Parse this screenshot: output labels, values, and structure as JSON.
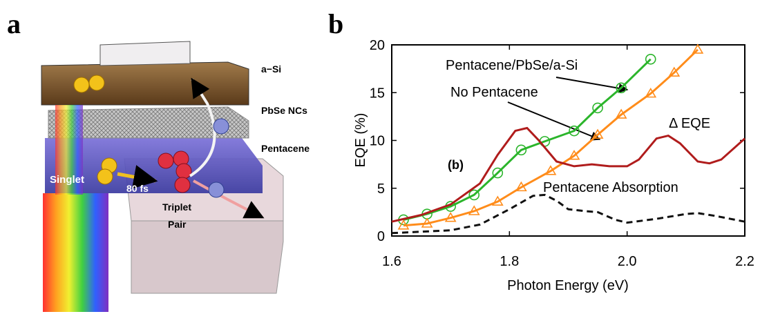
{
  "panel_a": {
    "panel_label": "a",
    "layer_labels": [
      "a−Si",
      "PbSe NCs",
      "Pentacene"
    ],
    "process_labels": [
      "Singlet",
      "80 fs",
      "Triplet",
      "Pair"
    ]
  },
  "chart_data": {
    "type": "line",
    "panel_label": "b",
    "inset_label": "(b)",
    "xlabel": "Photon Energy (eV)",
    "ylabel": "EQE (%)",
    "xlim": [
      1.6,
      2.2
    ],
    "ylim": [
      0,
      20
    ],
    "xticks": [
      1.6,
      1.8,
      {
        "value": 2,
        "label": "2.0"
      },
      2.2
    ],
    "yticks": [
      0,
      5,
      10,
      15,
      20
    ],
    "series": [
      {
        "name": "Pentacene/PbSe/a-Si",
        "color": "#2bb52b",
        "marker": "circle",
        "linestyle": "solid",
        "x": [
          1.62,
          1.66,
          1.7,
          1.74,
          1.78,
          1.82,
          1.86,
          1.91,
          1.95,
          1.99,
          2.04
        ],
        "values": [
          1.7,
          2.3,
          3.1,
          4.3,
          6.6,
          9.0,
          9.9,
          11.0,
          13.4,
          15.5,
          18.5
        ]
      },
      {
        "name": "No Pentacene",
        "color": "#ff8c1a",
        "marker": "triangle",
        "linestyle": "solid",
        "x": [
          1.62,
          1.66,
          1.7,
          1.74,
          1.78,
          1.82,
          1.87,
          1.91,
          1.95,
          1.99,
          2.04,
          2.08,
          2.12
        ],
        "values": [
          1.1,
          1.3,
          1.9,
          2.6,
          3.6,
          5.1,
          6.8,
          8.4,
          10.6,
          12.7,
          14.9,
          17.1,
          19.5
        ]
      },
      {
        "name": "Δ EQE",
        "color": "#b01c1c",
        "marker": null,
        "linestyle": "solid",
        "x": [
          1.6,
          1.65,
          1.7,
          1.75,
          1.78,
          1.81,
          1.83,
          1.85,
          1.88,
          1.91,
          1.94,
          1.97,
          2.0,
          2.02,
          2.05,
          2.07,
          2.09,
          2.12,
          2.14,
          2.16,
          2.2
        ],
        "values": [
          1.5,
          2.2,
          3.3,
          5.5,
          8.5,
          11.0,
          11.3,
          10.0,
          7.8,
          7.3,
          7.5,
          7.3,
          7.3,
          8.0,
          10.2,
          10.5,
          9.7,
          7.8,
          7.6,
          8.0,
          10.2
        ]
      },
      {
        "name": "Pentacene Absorption",
        "color": "#111111",
        "marker": null,
        "linestyle": "dashed",
        "x": [
          1.6,
          1.7,
          1.75,
          1.8,
          1.84,
          1.86,
          1.88,
          1.9,
          1.93,
          1.95,
          1.98,
          2.0,
          2.05,
          2.1,
          2.12,
          2.15,
          2.2
        ],
        "values": [
          0.3,
          0.6,
          1.2,
          2.8,
          4.2,
          4.3,
          3.7,
          2.8,
          2.6,
          2.5,
          1.7,
          1.4,
          1.8,
          2.3,
          2.4,
          2.1,
          1.5
        ]
      }
    ]
  }
}
